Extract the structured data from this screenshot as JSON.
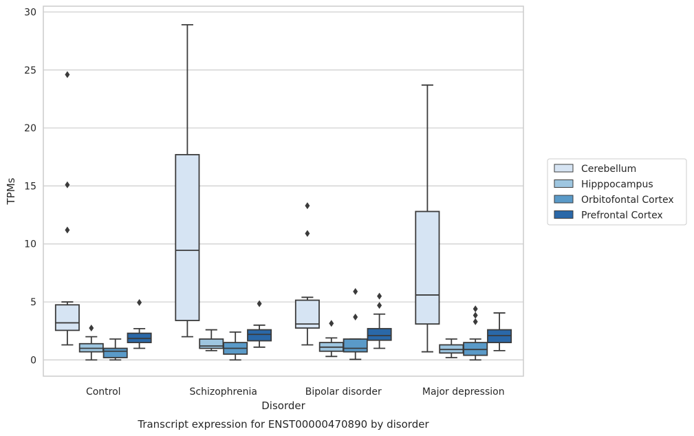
{
  "caption": "Transcript expression for ENST00000470890 by disorder",
  "chart_data": {
    "type": "box",
    "xlabel": "Disorder",
    "ylabel": "TPMs",
    "ylim": [
      -1.4,
      30.5
    ],
    "yticks": [
      0,
      5,
      10,
      15,
      20,
      25,
      30
    ],
    "grid": "horizontal",
    "legend_position": "right",
    "categories": [
      "Control",
      "Schizophrenia",
      "Bipolar disorder",
      "Major depression"
    ],
    "series": [
      {
        "name": "Cerebellum",
        "color": "#d6e4f3",
        "boxes": [
          {
            "whislo": 1.3,
            "q1": 2.55,
            "med": 3.2,
            "q3": 4.75,
            "whishi": 5.0,
            "fliers": [
              11.2,
              15.1,
              24.6
            ]
          },
          {
            "whislo": 2.0,
            "q1": 3.4,
            "med": 9.45,
            "q3": 17.7,
            "whishi": 28.9,
            "fliers": []
          },
          {
            "whislo": 1.3,
            "q1": 2.75,
            "med": 3.1,
            "q3": 5.15,
            "whishi": 5.4,
            "fliers": [
              10.9,
              13.3
            ]
          },
          {
            "whislo": 0.7,
            "q1": 3.1,
            "med": 5.6,
            "q3": 12.8,
            "whishi": 23.7,
            "fliers": []
          }
        ]
      },
      {
        "name": "Hipppocampus",
        "color": "#9ec6e0",
        "boxes": [
          {
            "whislo": 0.0,
            "q1": 0.7,
            "med": 1.0,
            "q3": 1.4,
            "whishi": 2.0,
            "fliers": [
              2.75
            ]
          },
          {
            "whislo": 0.8,
            "q1": 1.0,
            "med": 1.2,
            "q3": 1.8,
            "whishi": 2.6,
            "fliers": []
          },
          {
            "whislo": 0.3,
            "q1": 0.75,
            "med": 1.1,
            "q3": 1.5,
            "whishi": 1.9,
            "fliers": [
              3.15
            ]
          },
          {
            "whislo": 0.2,
            "q1": 0.6,
            "med": 0.9,
            "q3": 1.3,
            "whishi": 1.8,
            "fliers": []
          }
        ]
      },
      {
        "name": "Orbitofontal Cortex",
        "color": "#5a9ac8",
        "boxes": [
          {
            "whislo": 0.0,
            "q1": 0.2,
            "med": 0.75,
            "q3": 1.0,
            "whishi": 1.8,
            "fliers": []
          },
          {
            "whislo": 0.0,
            "q1": 0.5,
            "med": 1.0,
            "q3": 1.5,
            "whishi": 2.4,
            "fliers": []
          },
          {
            "whislo": 0.05,
            "q1": 0.7,
            "med": 1.0,
            "q3": 1.8,
            "whishi": 1.8,
            "fliers": [
              3.7,
              5.9
            ]
          },
          {
            "whislo": 0.0,
            "q1": 0.4,
            "med": 0.9,
            "q3": 1.5,
            "whishi": 1.8,
            "fliers": [
              3.3,
              3.85,
              4.4
            ]
          }
        ]
      },
      {
        "name": "Prefrontal Cortex",
        "color": "#2a68a8",
        "boxes": [
          {
            "whislo": 1.0,
            "q1": 1.5,
            "med": 1.85,
            "q3": 2.3,
            "whishi": 2.7,
            "fliers": [
              4.95
            ]
          },
          {
            "whislo": 1.1,
            "q1": 1.65,
            "med": 2.2,
            "q3": 2.6,
            "whishi": 3.0,
            "fliers": [
              4.85
            ]
          },
          {
            "whislo": 1.0,
            "q1": 1.7,
            "med": 2.1,
            "q3": 2.7,
            "whishi": 3.95,
            "fliers": [
              4.7,
              5.5
            ]
          },
          {
            "whislo": 0.8,
            "q1": 1.5,
            "med": 2.1,
            "q3": 2.6,
            "whishi": 4.05,
            "fliers": []
          }
        ]
      }
    ]
  }
}
